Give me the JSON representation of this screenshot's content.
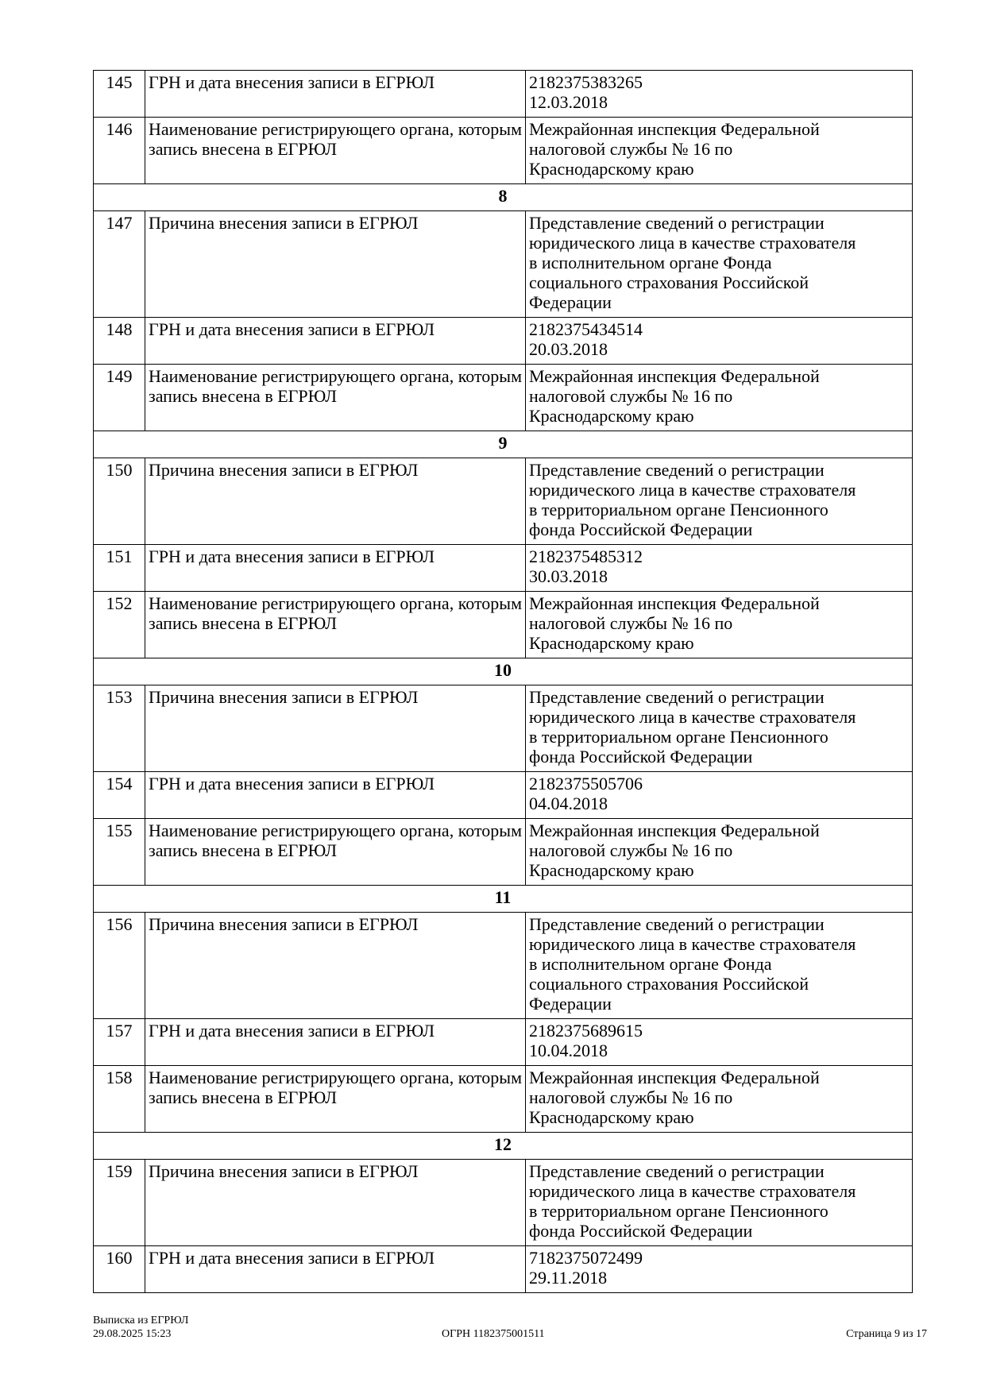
{
  "rows": [
    {
      "type": "row",
      "num": "145",
      "label": "ГРН и дата внесения записи в ЕГРЮЛ",
      "value": [
        "2182375383265",
        "12.03.2018"
      ]
    },
    {
      "type": "row",
      "num": "146",
      "label": "Наименование регистрирующего органа, которым запись внесена в ЕГРЮЛ",
      "value": [
        "Межрайонная инспекция Федеральной",
        "налоговой службы № 16 по",
        "Краснодарскому краю"
      ]
    },
    {
      "type": "section",
      "title": "8"
    },
    {
      "type": "row",
      "num": "147",
      "label": "Причина внесения записи в ЕГРЮЛ",
      "value": [
        "Представление сведений о регистрации",
        "юридического лица в качестве страхователя",
        "в исполнительном органе Фонда",
        "социального страхования Российской",
        "Федерации"
      ]
    },
    {
      "type": "row",
      "num": "148",
      "label": "ГРН и дата внесения записи в ЕГРЮЛ",
      "value": [
        "2182375434514",
        "20.03.2018"
      ]
    },
    {
      "type": "row",
      "num": "149",
      "label": "Наименование регистрирующего органа, которым запись внесена в ЕГРЮЛ",
      "value": [
        "Межрайонная инспекция Федеральной",
        "налоговой службы № 16 по",
        "Краснодарскому краю"
      ]
    },
    {
      "type": "section",
      "title": "9"
    },
    {
      "type": "row",
      "num": "150",
      "label": "Причина внесения записи в ЕГРЮЛ",
      "value": [
        "Представление сведений о регистрации",
        "юридического лица в качестве страхователя",
        "в территориальном органе Пенсионного",
        "фонда Российской Федерации"
      ]
    },
    {
      "type": "row",
      "num": "151",
      "label": "ГРН и дата внесения записи в ЕГРЮЛ",
      "value": [
        "2182375485312",
        "30.03.2018"
      ]
    },
    {
      "type": "row",
      "num": "152",
      "label": "Наименование регистрирующего органа, которым запись внесена в ЕГРЮЛ",
      "value": [
        "Межрайонная инспекция Федеральной",
        "налоговой службы № 16 по",
        "Краснодарскому краю"
      ]
    },
    {
      "type": "section",
      "title": "10"
    },
    {
      "type": "row",
      "num": "153",
      "label": "Причина внесения записи в ЕГРЮЛ",
      "value": [
        "Представление сведений о регистрации",
        "юридического лица в качестве страхователя",
        "в территориальном органе Пенсионного",
        "фонда Российской Федерации"
      ]
    },
    {
      "type": "row",
      "num": "154",
      "label": "ГРН и дата внесения записи в ЕГРЮЛ",
      "value": [
        "2182375505706",
        "04.04.2018"
      ]
    },
    {
      "type": "row",
      "num": "155",
      "label": "Наименование регистрирующего органа, которым запись внесена в ЕГРЮЛ",
      "value": [
        "Межрайонная инспекция Федеральной",
        "налоговой службы № 16 по",
        "Краснодарскому краю"
      ]
    },
    {
      "type": "section",
      "title": "11"
    },
    {
      "type": "row",
      "num": "156",
      "label": "Причина внесения записи в ЕГРЮЛ",
      "value": [
        "Представление сведений о регистрации",
        "юридического лица в качестве страхователя",
        "в исполнительном органе Фонда",
        "социального страхования Российской",
        "Федерации"
      ]
    },
    {
      "type": "row",
      "num": "157",
      "label": "ГРН и дата внесения записи в ЕГРЮЛ",
      "value": [
        "2182375689615",
        "10.04.2018"
      ]
    },
    {
      "type": "row",
      "num": "158",
      "label": "Наименование регистрирующего органа, которым запись внесена в ЕГРЮЛ",
      "value": [
        "Межрайонная инспекция Федеральной",
        "налоговой службы № 16 по",
        "Краснодарскому краю"
      ]
    },
    {
      "type": "section",
      "title": "12"
    },
    {
      "type": "row",
      "num": "159",
      "label": "Причина внесения записи в ЕГРЮЛ",
      "value": [
        "Представление сведений о регистрации",
        "юридического лица в качестве страхователя",
        "в территориальном органе Пенсионного",
        "фонда Российской Федерации"
      ]
    },
    {
      "type": "row",
      "num": "160",
      "label": "ГРН и дата внесения записи в ЕГРЮЛ",
      "value": [
        "7182375072499",
        "29.11.2018"
      ]
    }
  ],
  "footer": {
    "doc_title": "Выписка из ЕГРЮЛ",
    "datetime": "29.08.2025 15:23",
    "ogrn": "ОГРН 1182375001511",
    "page": "Страница 9 из 17"
  }
}
